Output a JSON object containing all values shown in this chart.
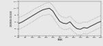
{
  "years": [
    800,
    850,
    900,
    950,
    1000,
    1050,
    1100,
    1150,
    1200,
    1250,
    1300,
    1350,
    1400,
    1450,
    1500,
    1550,
    1600,
    1650,
    1700,
    1750,
    1800,
    1850,
    1900,
    1950,
    2000
  ],
  "mean": [
    8.9,
    9.0,
    9.15,
    9.3,
    9.45,
    9.6,
    9.75,
    9.88,
    9.95,
    10.0,
    9.8,
    9.4,
    9.05,
    8.92,
    8.88,
    9.02,
    8.72,
    8.52,
    8.48,
    8.6,
    8.56,
    8.7,
    8.82,
    8.95,
    9.05
  ],
  "upper": [
    9.32,
    9.42,
    9.55,
    9.7,
    9.85,
    10.0,
    10.12,
    10.25,
    10.38,
    10.42,
    10.22,
    9.82,
    9.48,
    9.35,
    9.3,
    9.44,
    9.14,
    8.94,
    8.9,
    9.02,
    8.98,
    9.12,
    9.24,
    9.37,
    9.47
  ],
  "lower": [
    8.48,
    8.58,
    8.72,
    8.87,
    9.02,
    9.17,
    9.35,
    9.48,
    9.52,
    9.57,
    9.37,
    8.97,
    8.62,
    8.48,
    8.45,
    8.59,
    8.29,
    8.09,
    8.05,
    8.17,
    8.13,
    8.27,
    8.39,
    8.52,
    8.62
  ],
  "xlim": [
    800,
    2000
  ],
  "ylim": [
    8.0,
    10.5
  ],
  "xlabel": "YEAR",
  "ylabel": "DEGREES CELSIUS",
  "xticks": [
    800,
    900,
    1000,
    1100,
    1200,
    1300,
    1400,
    1500,
    1600,
    1700,
    1800,
    1900,
    2000
  ],
  "yticks": [
    8.0,
    8.5,
    9.0,
    9.5,
    10.0,
    10.5
  ],
  "line_color": "#2a2a2a",
  "dot_color": "#888888",
  "bg_color": "#e8e8e8",
  "linewidth": 0.7,
  "dotlinewidth": 0.55
}
